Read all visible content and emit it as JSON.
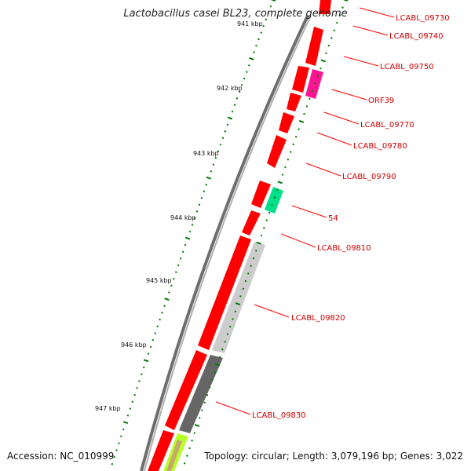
{
  "map": {
    "title": "Lactobacillus casei BL23, complete genome",
    "accession_text": "Accession: NC_010999",
    "summary_text": "Topology: circular; Length: 3,079,196 bp; Genes: 3,022",
    "colors": {
      "backbone": "#808080",
      "cds": "#ff0000",
      "orf": "#ff1493",
      "rna": "#00e08a",
      "highlight_light": "#cccccc",
      "highlight_dark": "#666666",
      "yellow_green": "#b5ff2a",
      "tick": "#007700",
      "label": "#cc0000"
    }
  },
  "tick_labels": [
    "941 kbp",
    "942 kbp",
    "943 kbp",
    "944 kbp",
    "945 kbp",
    "946 kbp",
    "947 kbp"
  ],
  "gene_labels": [
    "LCABL_09730",
    "LCABL_09740",
    "LCABL_09750",
    "ORF39",
    "LCABL_09770",
    "LCABL_09780",
    "LCABL_09790",
    "54",
    "LCABL_09810",
    "LCABL_09820",
    "LCABL_09830"
  ]
}
